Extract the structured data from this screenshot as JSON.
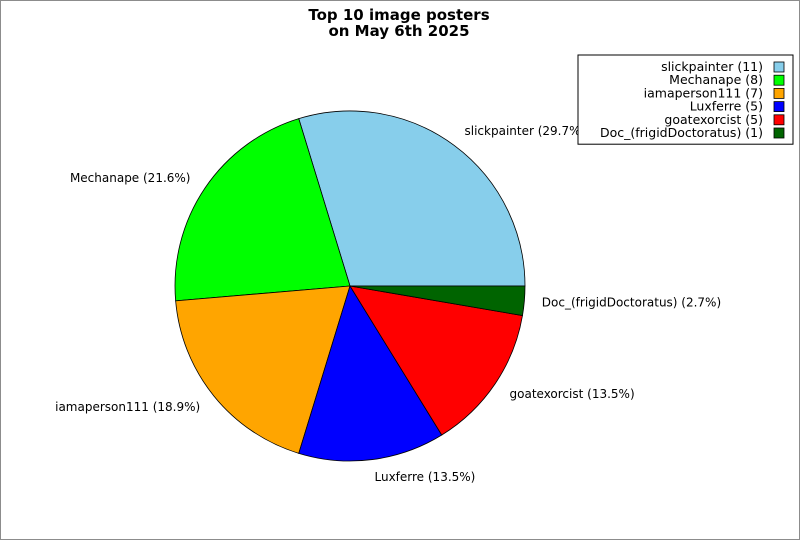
{
  "chart_data": {
    "type": "pie",
    "title_lines": [
      "Top 10 image posters",
      "on May 6th 2025"
    ],
    "slices": [
      {
        "name": "slickpainter",
        "value": 11,
        "percent_label": "slickpainter (29.7%)",
        "legend_label": "slickpainter (11)",
        "color": "#87ceeb"
      },
      {
        "name": "Mechanape",
        "value": 8,
        "percent_label": "Mechanape (21.6%)",
        "legend_label": "Mechanape (8)",
        "color": "#00ff00"
      },
      {
        "name": "iamaperson111",
        "value": 7,
        "percent_label": "iamaperson111 (18.9%)",
        "legend_label": "iamaperson111 (7)",
        "color": "#ffa500"
      },
      {
        "name": "Luxferre",
        "value": 5,
        "percent_label": "Luxferre (13.5%)",
        "legend_label": "Luxferre (5)",
        "color": "#0000ff"
      },
      {
        "name": "goatexorcist",
        "value": 5,
        "percent_label": "goatexorcist (13.5%)",
        "legend_label": "goatexorcist (5)",
        "color": "#ff0000"
      },
      {
        "name": "Doc_(frigidDoctoratus)",
        "value": 1,
        "percent_label": "Doc_(frigidDoctoratus) (2.7%)",
        "legend_label": "Doc_(frigidDoctoratus) (1)",
        "color": "#006400"
      }
    ],
    "start_angle_deg": 0,
    "direction": "counterclockwise",
    "legend_position": "top-right"
  }
}
